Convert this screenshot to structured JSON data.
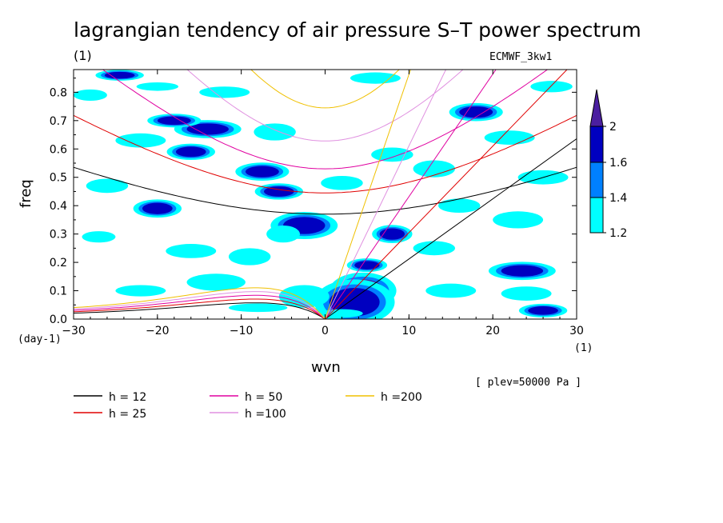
{
  "title": "lagrangian tendency of air pressure S–T power spectrum",
  "subtitle_left": "(1)",
  "subtitle_right": "ECMWF_3kw1",
  "level_note": "[ plev=50000 Pa ]",
  "colors": {
    "shade_low": "#00ffff",
    "shade_mid": "#0080ff",
    "shade_high": "#0000c0",
    "shade_top": "#4b1fa0",
    "h12": "#000000",
    "h25": "#e00000",
    "h50": "#e000a0",
    "h100": "#e090e0",
    "h200": "#f0c000"
  },
  "chart_data": {
    "type": "heatmap",
    "xlabel": "wvn",
    "ylabel": "freq",
    "x_unit_label": "(1)",
    "y_unit_label": "(day-1)",
    "xlim": [
      -30,
      30
    ],
    "ylim": [
      0,
      0.88
    ],
    "x_ticks": [
      "−30",
      "−20",
      "−10",
      "0",
      "10",
      "20",
      "30"
    ],
    "y_ticks": [
      "0.0",
      "0.1",
      "0.2",
      "0.3",
      "0.4",
      "0.5",
      "0.6",
      "0.7",
      "0.8"
    ],
    "colorbar": {
      "labels": [
        "1.2",
        "1.4",
        "1.6",
        "2"
      ],
      "bounds": [
        1.2,
        1.4,
        1.6,
        2.0
      ]
    },
    "shaded_regions": [
      {
        "x": 4.5,
        "y": 0.1,
        "rx": 2.5,
        "ry": 0.04,
        "level": 2.0
      },
      {
        "x": 3.5,
        "y": 0.06,
        "rx": 3.0,
        "ry": 0.05,
        "level": 1.6
      },
      {
        "x": 5.0,
        "y": 0.19,
        "rx": 1.5,
        "ry": 0.015,
        "level": 1.6
      },
      {
        "x": -2.5,
        "y": 0.33,
        "rx": 2.5,
        "ry": 0.03,
        "level": 1.6
      },
      {
        "x": -7.5,
        "y": 0.52,
        "rx": 2.0,
        "ry": 0.02,
        "level": 1.6
      },
      {
        "x": -14,
        "y": 0.67,
        "rx": 2.5,
        "ry": 0.02,
        "level": 1.6
      },
      {
        "x": -18,
        "y": 0.7,
        "rx": 2.0,
        "ry": 0.015,
        "level": 1.6
      },
      {
        "x": -20,
        "y": 0.39,
        "rx": 1.8,
        "ry": 0.02,
        "level": 1.6
      },
      {
        "x": 8,
        "y": 0.3,
        "rx": 1.5,
        "ry": 0.02,
        "level": 1.6
      },
      {
        "x": 18,
        "y": 0.73,
        "rx": 2.0,
        "ry": 0.02,
        "level": 1.6
      },
      {
        "x": 23.5,
        "y": 0.17,
        "rx": 2.5,
        "ry": 0.02,
        "level": 1.6
      },
      {
        "x": 26,
        "y": 0.03,
        "rx": 1.8,
        "ry": 0.015,
        "level": 1.6
      },
      {
        "x": -24.5,
        "y": 0.86,
        "rx": 1.8,
        "ry": 0.012,
        "level": 1.6
      },
      {
        "x": -16,
        "y": 0.59,
        "rx": 1.8,
        "ry": 0.018,
        "level": 1.6
      },
      {
        "x": -5.5,
        "y": 0.45,
        "rx": 1.8,
        "ry": 0.018,
        "level": 1.6
      },
      {
        "x": -2.5,
        "y": 0.08,
        "rx": 3.0,
        "ry": 0.04,
        "level": 1.2
      },
      {
        "x": -13,
        "y": 0.13,
        "rx": 3.5,
        "ry": 0.03,
        "level": 1.2
      },
      {
        "x": -22,
        "y": 0.1,
        "rx": 3.0,
        "ry": 0.02,
        "level": 1.2
      },
      {
        "x": -27,
        "y": 0.29,
        "rx": 2.0,
        "ry": 0.02,
        "level": 1.2
      },
      {
        "x": -26,
        "y": 0.47,
        "rx": 2.5,
        "ry": 0.025,
        "level": 1.2
      },
      {
        "x": -22,
        "y": 0.63,
        "rx": 3.0,
        "ry": 0.025,
        "level": 1.2
      },
      {
        "x": -28,
        "y": 0.79,
        "rx": 2.0,
        "ry": 0.02,
        "level": 1.2
      },
      {
        "x": -12,
        "y": 0.8,
        "rx": 3.0,
        "ry": 0.02,
        "level": 1.2
      },
      {
        "x": -6,
        "y": 0.66,
        "rx": 2.5,
        "ry": 0.03,
        "level": 1.2
      },
      {
        "x": -16,
        "y": 0.24,
        "rx": 3.0,
        "ry": 0.025,
        "level": 1.2
      },
      {
        "x": -9,
        "y": 0.22,
        "rx": 2.5,
        "ry": 0.03,
        "level": 1.2
      },
      {
        "x": -5,
        "y": 0.3,
        "rx": 2.0,
        "ry": 0.03,
        "level": 1.2
      },
      {
        "x": 2,
        "y": 0.48,
        "rx": 2.5,
        "ry": 0.025,
        "level": 1.2
      },
      {
        "x": 8,
        "y": 0.58,
        "rx": 2.5,
        "ry": 0.025,
        "level": 1.2
      },
      {
        "x": 13,
        "y": 0.53,
        "rx": 2.5,
        "ry": 0.03,
        "level": 1.2
      },
      {
        "x": 16,
        "y": 0.4,
        "rx": 2.5,
        "ry": 0.025,
        "level": 1.2
      },
      {
        "x": 23,
        "y": 0.35,
        "rx": 3.0,
        "ry": 0.03,
        "level": 1.2
      },
      {
        "x": 26,
        "y": 0.5,
        "rx": 3.0,
        "ry": 0.025,
        "level": 1.2
      },
      {
        "x": 22,
        "y": 0.64,
        "rx": 3.0,
        "ry": 0.025,
        "level": 1.2
      },
      {
        "x": 27,
        "y": 0.82,
        "rx": 2.5,
        "ry": 0.02,
        "level": 1.2
      },
      {
        "x": 6,
        "y": 0.85,
        "rx": 3.0,
        "ry": 0.02,
        "level": 1.2
      },
      {
        "x": 15,
        "y": 0.1,
        "rx": 3.0,
        "ry": 0.025,
        "level": 1.2
      },
      {
        "x": 24,
        "y": 0.09,
        "rx": 3.0,
        "ry": 0.025,
        "level": 1.2
      },
      {
        "x": 13,
        "y": 0.25,
        "rx": 2.5,
        "ry": 0.025,
        "level": 1.2
      },
      {
        "x": -20,
        "y": 0.82,
        "rx": 2.5,
        "ry": 0.015,
        "level": 1.2
      },
      {
        "x": 2,
        "y": 0.02,
        "rx": 2.5,
        "ry": 0.015,
        "level": 1.2
      },
      {
        "x": -8,
        "y": 0.04,
        "rx": 3.5,
        "ry": 0.015,
        "level": 1.2
      }
    ],
    "dispersion_curves": [
      {
        "name": "h = 12",
        "h": 12,
        "color_key": "h12",
        "kelvin_slope": 0.0212,
        "ig_omega0": 0.37,
        "ig_slope": 0.0129,
        "mrg_peak": 0.065
      },
      {
        "name": "h = 25",
        "h": 25,
        "color_key": "h25",
        "kelvin_slope": 0.0305,
        "ig_omega0": 0.445,
        "ig_slope": 0.0188,
        "mrg_peak": 0.08
      },
      {
        "name": "h = 50",
        "h": 50,
        "color_key": "h50",
        "kelvin_slope": 0.0432,
        "ig_omega0": 0.53,
        "ig_slope": 0.0265,
        "mrg_peak": 0.095
      },
      {
        "name": "h =100",
        "h": 100,
        "color_key": "h100",
        "kelvin_slope": 0.0611,
        "ig_omega0": 0.628,
        "ig_slope": 0.0375,
        "mrg_peak": 0.11
      },
      {
        "name": "h =200",
        "h": 200,
        "color_key": "h200",
        "kelvin_slope": 0.0863,
        "ig_omega0": 0.745,
        "ig_slope": 0.053,
        "mrg_peak": 0.125
      }
    ]
  }
}
